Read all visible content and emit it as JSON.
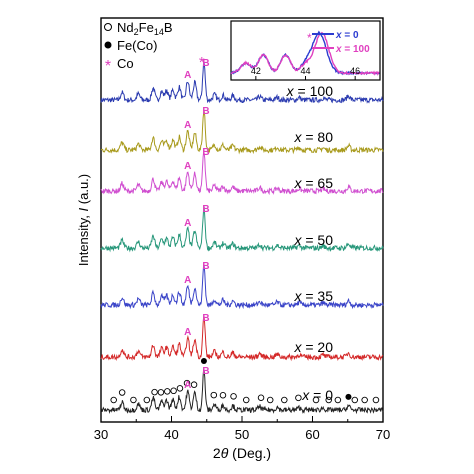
{
  "chart_data": {
    "type": "line",
    "xlabel_prefix": "2",
    "xlabel_theta": "θ",
    "xlabel_suffix": " (Deg.)",
    "ylabel_prefix": "Intensity, ",
    "ylabel_italic": "I",
    "ylabel_suffix": " (a.u.)",
    "xlim": [
      30,
      70
    ],
    "xticks": [
      "30",
      "40",
      "50",
      "60",
      "70"
    ],
    "legend": {
      "nd_prefix": "Nd",
      "nd_sub1": "2",
      "nd_mid": "Fe",
      "nd_sub2": "14",
      "nd_suffix": "B",
      "fe": "Fe(Co)",
      "co": "Co"
    },
    "peak_labels": {
      "a": "A",
      "b": "B"
    },
    "series": [
      {
        "label": "x = 100",
        "label_var": "x",
        "label_rest": " = 100",
        "color": "#2b3bb0"
      },
      {
        "label": "x = 80",
        "label_var": "x",
        "label_rest": " = 80",
        "color": "#a89a1c"
      },
      {
        "label": "x = 65",
        "label_var": "x",
        "label_rest": " = 65",
        "color": "#d04fd0"
      },
      {
        "label": "x = 50",
        "label_var": "x",
        "label_rest": " = 50",
        "color": "#27977a"
      },
      {
        "label": "x = 35",
        "label_var": "x",
        "label_rest": " = 35",
        "color": "#3a44c8"
      },
      {
        "label": "x = 20",
        "label_var": "x",
        "label_rest": " = 20",
        "color": "#d42828"
      },
      {
        "label": "x = 0",
        "label_var": "x",
        "label_rest": " = 0",
        "color": "#222222"
      }
    ],
    "peaks": {
      "A": 42.3,
      "B": 44.6
    },
    "nd_markers_x": [
      31.8,
      33.0,
      34.6,
      36.5,
      37.6,
      38.5,
      39.4,
      40.3,
      41.2,
      42.2,
      43.2,
      46.0,
      47.3,
      48.8,
      50.6,
      52.7,
      54.0,
      56.0,
      58.0,
      60.5,
      62.3,
      63.6,
      66.0,
      67.4,
      69.0
    ],
    "fe_markers_x": [
      44.6,
      65.1
    ],
    "inset": {
      "xlim": [
        41,
        47
      ],
      "xticks": [
        "42",
        "44",
        "46"
      ],
      "series": [
        {
          "label": "x = 0",
          "label_var": "x",
          "label_rest": " = 0",
          "color": "#2b3bd0"
        },
        {
          "label": "x = 100",
          "label_var": "x",
          "label_rest": " = 100",
          "color": "#e040c0"
        }
      ]
    }
  }
}
